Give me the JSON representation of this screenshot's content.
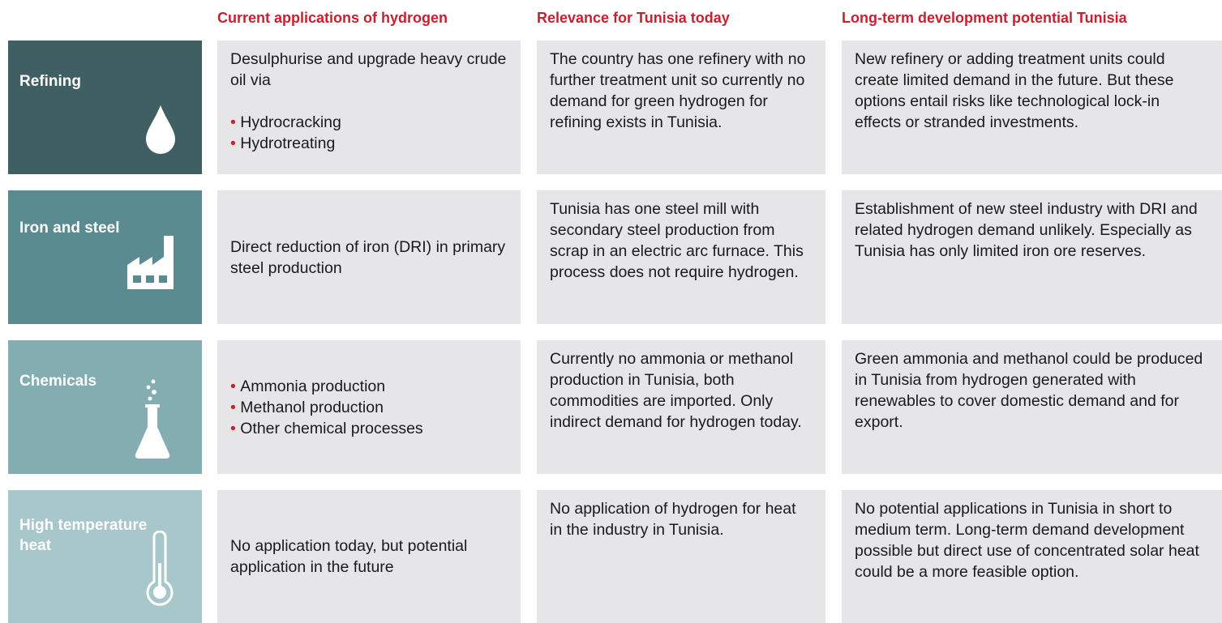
{
  "header": {
    "columns": [
      "Current applications of hydrogen",
      "Relevance for Tunisia today",
      "Long-term development potential Tunisia"
    ]
  },
  "rows": [
    {
      "label": "Refining",
      "application": {
        "text": "Desulphurise and upgrade heavy crude oil via",
        "bullets": [
          "Hydrocracking",
          "Hydrotreating"
        ]
      },
      "relevance": "The country has one refinery with no further treatment unit so currently no demand for green hydrogen for refining exists in Tunisia.",
      "potential": "New refinery or adding treatment units could create limited demand in the future. But these options entail risks like technological lock-in effects or stranded investments."
    },
    {
      "label": "Iron and steel",
      "application": {
        "text": "Direct reduction of iron (DRI) in primary steel production"
      },
      "relevance": "Tunisia has one steel mill with secondary steel production from scrap in an electric arc furnace. This process does not require hydrogen.",
      "potential": "Establishment of new steel industry with DRI and related hydrogen demand unlikely. Especially  as Tunisia has only limited iron ore reserves."
    },
    {
      "label": "Chemicals",
      "application": {
        "bullets": [
          "Ammonia production",
          "Methanol production",
          "Other chemical processes"
        ]
      },
      "relevance": "Currently no ammonia or methanol production in Tunisia, both commodities are imported. Only indirect demand for hydrogen today.",
      "potential": "Green ammonia and methanol could be produced in Tunisia from hydrogen generated with renewables to cover domestic demand and for export."
    },
    {
      "label": "High temperature heat",
      "application": {
        "text": "No application today, but potential application in the future"
      },
      "relevance": "No application of hydrogen for heat in the industry in Tunisia.",
      "potential": "No potential applications in Tunisia in short to medium term. Long-term demand development possible but direct use of concentrated solar heat could be a more feasible option."
    }
  ]
}
